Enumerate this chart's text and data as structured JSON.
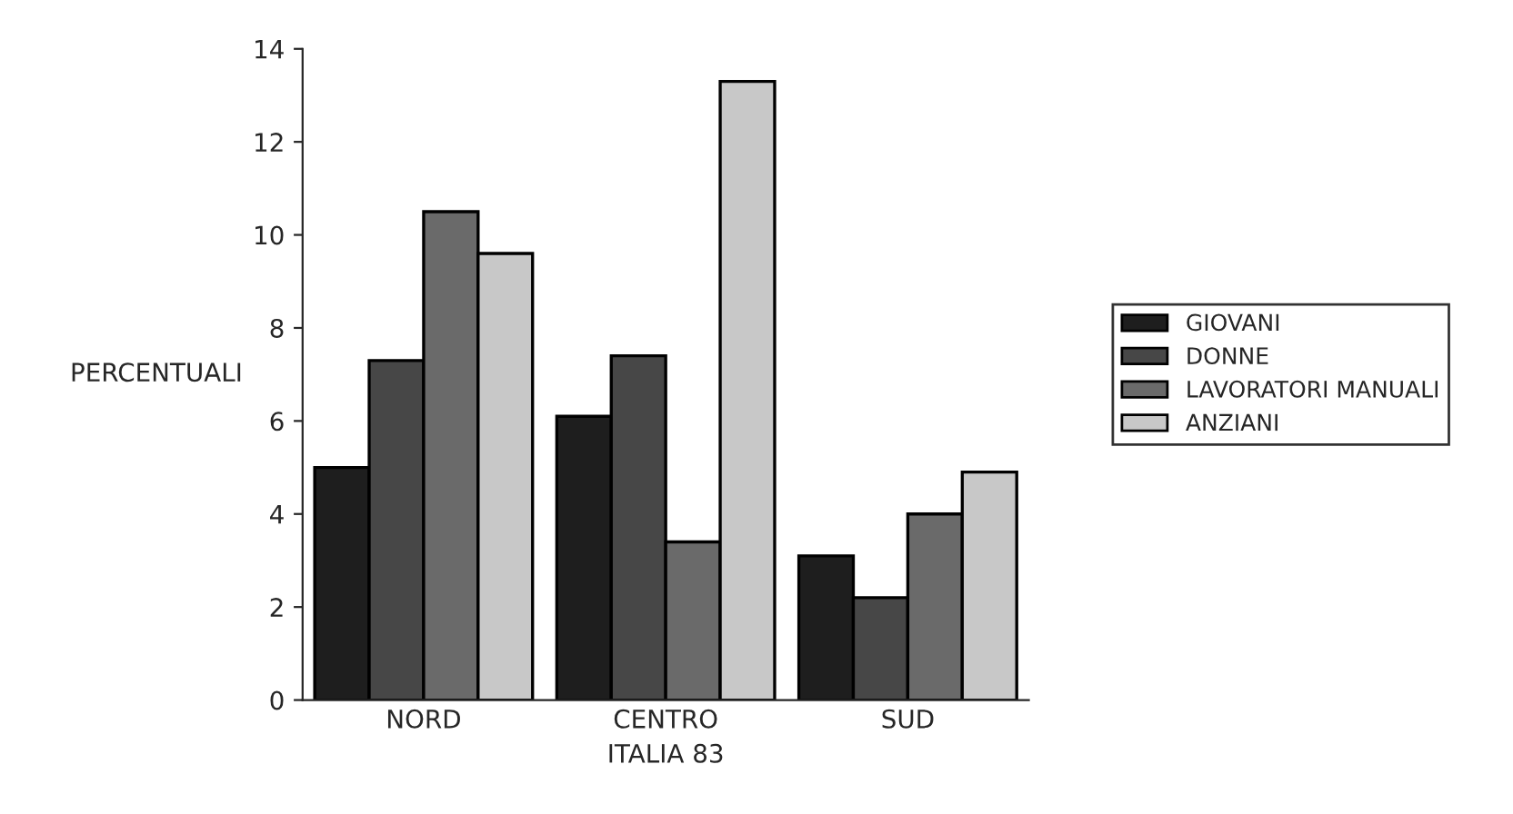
{
  "chart_data": {
    "type": "bar",
    "xlabel": "ITALIA 83",
    "ylabel": "PERCENTUALI",
    "categories": [
      "NORD",
      "CENTRO",
      "SUD"
    ],
    "series": [
      {
        "name": "GIOVANI",
        "color": "#1e1e1e",
        "values": [
          5.0,
          6.1,
          3.1
        ]
      },
      {
        "name": "DONNE",
        "color": "#474747",
        "values": [
          7.3,
          7.4,
          2.2
        ]
      },
      {
        "name": "LAVORATORI MANUALI",
        "color": "#6a6a6a",
        "values": [
          10.5,
          3.4,
          4.0
        ]
      },
      {
        "name": "ANZIANI",
        "color": "#c8c8c8",
        "values": [
          9.6,
          13.3,
          4.9
        ]
      }
    ],
    "ylim": [
      0,
      14
    ],
    "yticks": [
      0,
      2,
      4,
      6,
      8,
      10,
      12,
      14
    ],
    "grid": false,
    "legend": "right"
  }
}
